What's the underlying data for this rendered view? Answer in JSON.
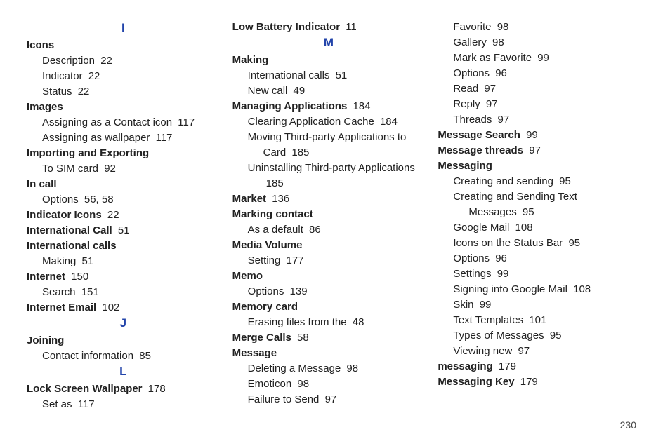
{
  "pageNumber": "230",
  "letters": {
    "I": "I",
    "J": "J",
    "L": "L",
    "M": "M"
  },
  "col1": [
    {
      "type": "letter",
      "key": "letters.I"
    },
    {
      "type": "head",
      "text": "Icons"
    },
    {
      "type": "sub",
      "text": "Description",
      "page": "22"
    },
    {
      "type": "sub",
      "text": "Indicator",
      "page": "22"
    },
    {
      "type": "sub",
      "text": "Status",
      "page": "22"
    },
    {
      "type": "head",
      "text": "Images"
    },
    {
      "type": "sub",
      "text": "Assigning as a Contact icon",
      "page": "117"
    },
    {
      "type": "sub",
      "text": "Assigning as wallpaper",
      "page": "117"
    },
    {
      "type": "head",
      "text": "Importing and Exporting"
    },
    {
      "type": "sub",
      "text": "To SIM card",
      "page": "92"
    },
    {
      "type": "head",
      "text": "In call"
    },
    {
      "type": "sub",
      "text": "Options",
      "page": "56, 58"
    },
    {
      "type": "headpage",
      "text": "Indicator Icons",
      "page": "22"
    },
    {
      "type": "headpage",
      "text": "International Call",
      "page": "51"
    },
    {
      "type": "head",
      "text": "International calls"
    },
    {
      "type": "sub",
      "text": "Making",
      "page": "51"
    },
    {
      "type": "headpage",
      "text": "Internet",
      "page": "150"
    },
    {
      "type": "sub",
      "text": "Search",
      "page": "151"
    },
    {
      "type": "headpage",
      "text": "Internet Email",
      "page": "102"
    },
    {
      "type": "letter",
      "key": "letters.J"
    },
    {
      "type": "head",
      "text": "Joining"
    },
    {
      "type": "sub",
      "text": "Contact information",
      "page": "85"
    },
    {
      "type": "letter",
      "key": "letters.L"
    },
    {
      "type": "headpage",
      "text": "Lock Screen Wallpaper",
      "page": "178"
    },
    {
      "type": "sub",
      "text": "Set as",
      "page": "117"
    }
  ],
  "col2": [
    {
      "type": "headpage",
      "text": "Low Battery Indicator",
      "page": "11"
    },
    {
      "type": "letter",
      "key": "letters.M"
    },
    {
      "type": "head",
      "text": "Making"
    },
    {
      "type": "sub",
      "text": "International calls",
      "page": "51"
    },
    {
      "type": "sub",
      "text": "New call",
      "page": "49"
    },
    {
      "type": "headpage",
      "text": "Managing Applications",
      "page": "184"
    },
    {
      "type": "sub",
      "text": "Clearing Application Cache",
      "page": "184"
    },
    {
      "type": "subwrap",
      "text1": "Moving Third-party Applications to",
      "text2": "Card",
      "page": "185"
    },
    {
      "type": "subwrap",
      "text1": "Uninstalling Third-party Applications",
      "text2": "",
      "page": "185",
      "pageOnSecond": true
    },
    {
      "type": "headpage",
      "text": "Market",
      "page": "136"
    },
    {
      "type": "head",
      "text": "Marking contact"
    },
    {
      "type": "sub",
      "text": "As a default",
      "page": "86"
    },
    {
      "type": "head",
      "text": "Media Volume"
    },
    {
      "type": "sub",
      "text": "Setting",
      "page": "177"
    },
    {
      "type": "head",
      "text": "Memo"
    },
    {
      "type": "sub",
      "text": "Options",
      "page": "139"
    },
    {
      "type": "head",
      "text": "Memory card"
    },
    {
      "type": "sub",
      "text": "Erasing files from the",
      "page": "48"
    },
    {
      "type": "headpage",
      "text": "Merge Calls",
      "page": "58"
    },
    {
      "type": "head",
      "text": "Message"
    },
    {
      "type": "sub",
      "text": "Deleting a Message",
      "page": "98"
    },
    {
      "type": "sub",
      "text": "Emoticon",
      "page": "98"
    },
    {
      "type": "sub",
      "text": "Failure to Send",
      "page": "97"
    }
  ],
  "col3": [
    {
      "type": "sub",
      "text": "Favorite",
      "page": "98"
    },
    {
      "type": "sub",
      "text": "Gallery",
      "page": "98"
    },
    {
      "type": "sub",
      "text": "Mark as Favorite",
      "page": "99"
    },
    {
      "type": "sub",
      "text": "Options",
      "page": "96"
    },
    {
      "type": "sub",
      "text": "Read",
      "page": "97"
    },
    {
      "type": "sub",
      "text": "Reply",
      "page": "97"
    },
    {
      "type": "sub",
      "text": "Threads",
      "page": "97"
    },
    {
      "type": "headpage",
      "text": "Message Search",
      "page": "99"
    },
    {
      "type": "headpage",
      "text": "Message threads",
      "page": "97"
    },
    {
      "type": "head",
      "text": "Messaging"
    },
    {
      "type": "sub",
      "text": "Creating and sending",
      "page": "95"
    },
    {
      "type": "subwrap",
      "text1": "Creating and Sending Text",
      "text2": "Messages",
      "page": "95"
    },
    {
      "type": "sub",
      "text": "Google Mail",
      "page": "108"
    },
    {
      "type": "sub",
      "text": "Icons on the Status Bar",
      "page": "95"
    },
    {
      "type": "sub",
      "text": "Options",
      "page": "96"
    },
    {
      "type": "sub",
      "text": "Settings",
      "page": "99"
    },
    {
      "type": "sub",
      "text": "Signing into Google Mail",
      "page": "108"
    },
    {
      "type": "sub",
      "text": "Skin",
      "page": "99"
    },
    {
      "type": "sub",
      "text": "Text Templates",
      "page": "101"
    },
    {
      "type": "sub",
      "text": "Types of Messages",
      "page": "95"
    },
    {
      "type": "sub",
      "text": "Viewing new",
      "page": "97"
    },
    {
      "type": "headpage",
      "text": "messaging",
      "page": "179"
    },
    {
      "type": "headpage",
      "text": "Messaging Key",
      "page": "179"
    }
  ]
}
